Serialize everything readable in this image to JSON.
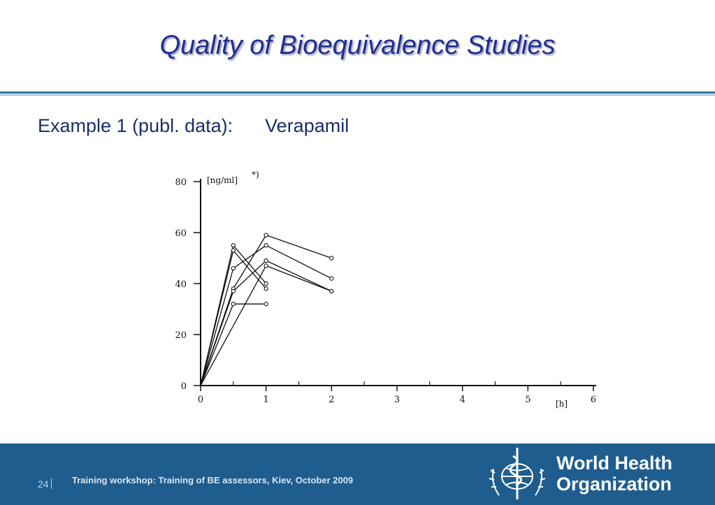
{
  "slide": {
    "title": "Quality of Bioequivalence Studies",
    "example_label": "Example 1 (publ. data):",
    "drug_name": "Verapamil"
  },
  "chart_data": {
    "type": "line",
    "ylabel": "[ng/ml]",
    "ylabel_note": "*)",
    "xlabel": "[h]",
    "xlim": [
      0,
      6
    ],
    "ylim": [
      0,
      80
    ],
    "x_ticks": [
      "0",
      "1",
      "2",
      "3",
      "4",
      "5",
      "6"
    ],
    "y_ticks": [
      "0",
      "20",
      "40",
      "60",
      "80"
    ],
    "grid": false,
    "series": [
      {
        "x": [
          0,
          0.5,
          1
        ],
        "y": [
          0,
          55,
          40
        ]
      },
      {
        "x": [
          0,
          0.5,
          1
        ],
        "y": [
          0,
          53,
          38
        ]
      },
      {
        "x": [
          0,
          0.5,
          1
        ],
        "y": [
          0,
          32,
          32
        ]
      },
      {
        "x": [
          0,
          0.5,
          1,
          2
        ],
        "y": [
          0,
          38,
          59,
          50
        ]
      },
      {
        "x": [
          0,
          0.5,
          1,
          2
        ],
        "y": [
          0,
          46,
          55,
          42
        ]
      },
      {
        "x": [
          0,
          0.5,
          1,
          2
        ],
        "y": [
          0,
          37,
          49,
          37
        ]
      },
      {
        "x": [
          0,
          1,
          2
        ],
        "y": [
          0,
          47,
          37
        ]
      }
    ]
  },
  "footer": {
    "page_number": "24",
    "text": "Training workshop: Training of BE assessors, Kiev, October 2009",
    "org_line1": "World Health",
    "org_line2": "Organization",
    "colors": {
      "bar": "#1f5d8f",
      "title": "#1f2f8f"
    }
  }
}
